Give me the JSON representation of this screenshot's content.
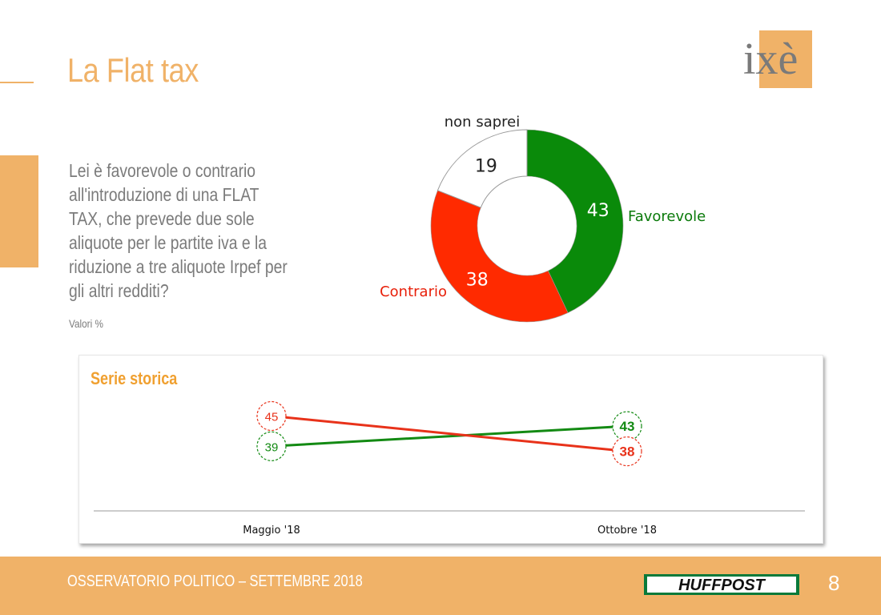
{
  "header": {
    "title": "La Flat tax",
    "logo_text": "ixè"
  },
  "question": "Lei è favorevole o contrario all'introduzione di una FLAT TAX, che prevede due sole aliquote per le partite iva e la riduzione a tre aliquote Irpef per gli altri redditi?",
  "unit_note": "Valori %",
  "chart_data": [
    {
      "type": "pie",
      "variant": "donut",
      "slices": [
        {
          "label": "Favorevole",
          "value": 43,
          "color": "#0a8a0a",
          "label_color": "#0a7a0a"
        },
        {
          "label": "Contrario",
          "value": 38,
          "color": "#ff2a00",
          "label_color": "#e8200a"
        },
        {
          "label": "non saprei",
          "value": 19,
          "color": "#ffffff",
          "label_color": "#222222"
        }
      ]
    },
    {
      "type": "line",
      "title": "Serie storica",
      "categories": [
        "Maggio '18",
        "Ottobre '18"
      ],
      "series": [
        {
          "values": [
            39,
            43
          ],
          "color": "#138a13"
        },
        {
          "values": [
            45,
            38
          ],
          "color": "#e8321a"
        }
      ]
    }
  ],
  "footer": {
    "text": "OSSERVATORIO POLITICO – SETTEMBRE 2018",
    "brand": "HUFFPOST",
    "page": "8"
  }
}
